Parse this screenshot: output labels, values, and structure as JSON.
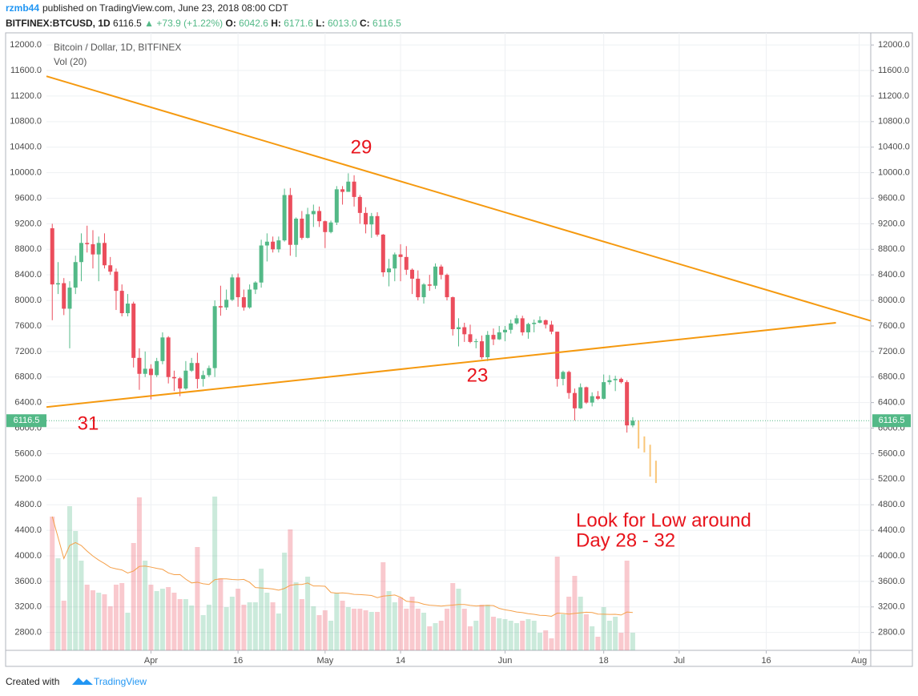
{
  "header": {
    "user": "rzmb44",
    "published": "published on TradingView.com, June 23, 2018 08:00 CDT",
    "quote": [
      "BITFINEX:BTCUSD, 1D",
      "6116.5",
      "▲",
      "+73.9 (+1.22%)",
      "O:",
      "6042.6",
      "H:",
      "6171.6",
      "L:",
      "6013.0",
      "C:",
      "6116.5"
    ]
  },
  "footer": {
    "created": "Created with",
    "brand": "TradingView"
  },
  "chart_data": {
    "type": "candlestick",
    "title": "Bitcoin / Dollar, 1D, BITFINEX",
    "volume_label": "Vol (20)",
    "x": [
      "2018-03-15",
      "2018-03-16",
      "2018-03-17",
      "2018-03-18",
      "2018-03-19",
      "2018-03-20",
      "2018-03-21",
      "2018-03-22",
      "2018-03-23",
      "2018-03-24",
      "2018-03-25",
      "2018-03-26",
      "2018-03-27",
      "2018-03-28",
      "2018-03-29",
      "2018-03-30",
      "2018-03-31",
      "2018-04-01",
      "2018-04-02",
      "2018-04-03",
      "2018-04-04",
      "2018-04-05",
      "2018-04-06",
      "2018-04-07",
      "2018-04-08",
      "2018-04-09",
      "2018-04-10",
      "2018-04-11",
      "2018-04-12",
      "2018-04-13",
      "2018-04-14",
      "2018-04-15",
      "2018-04-16",
      "2018-04-17",
      "2018-04-18",
      "2018-04-19",
      "2018-04-20",
      "2018-04-21",
      "2018-04-22",
      "2018-04-23",
      "2018-04-24",
      "2018-04-25",
      "2018-04-26",
      "2018-04-27",
      "2018-04-28",
      "2018-04-29",
      "2018-04-30",
      "2018-05-01",
      "2018-05-02",
      "2018-05-03",
      "2018-05-04",
      "2018-05-05",
      "2018-05-06",
      "2018-05-07",
      "2018-05-08",
      "2018-05-09",
      "2018-05-10",
      "2018-05-11",
      "2018-05-12",
      "2018-05-13",
      "2018-05-14",
      "2018-05-15",
      "2018-05-16",
      "2018-05-17",
      "2018-05-18",
      "2018-05-19",
      "2018-05-20",
      "2018-05-21",
      "2018-05-22",
      "2018-05-23",
      "2018-05-24",
      "2018-05-25",
      "2018-05-26",
      "2018-05-27",
      "2018-05-28",
      "2018-05-29",
      "2018-05-30",
      "2018-05-31",
      "2018-06-01",
      "2018-06-02",
      "2018-06-03",
      "2018-06-04",
      "2018-06-05",
      "2018-06-06",
      "2018-06-07",
      "2018-06-08",
      "2018-06-09",
      "2018-06-10",
      "2018-06-11",
      "2018-06-12",
      "2018-06-13",
      "2018-06-14",
      "2018-06-15",
      "2018-06-16",
      "2018-06-17",
      "2018-06-18",
      "2018-06-19",
      "2018-06-20",
      "2018-06-21",
      "2018-06-22",
      "2018-06-23"
    ],
    "open": [
      9130,
      8250,
      8270,
      7870,
      8200,
      8600,
      8900,
      8880,
      8720,
      8900,
      8550,
      8450,
      8150,
      7800,
      7950,
      7100,
      6850,
      6930,
      6830,
      7050,
      7420,
      6800,
      6780,
      6620,
      6900,
      7020,
      6770,
      6830,
      6940,
      7910,
      7890,
      8010,
      8360,
      8050,
      7890,
      8170,
      8280,
      8860,
      8920,
      8800,
      8940,
      9650,
      8870,
      9280,
      8980,
      9350,
      9400,
      9240,
      9070,
      9220,
      9740,
      9700,
      9860,
      9620,
      9370,
      9190,
      9320,
      9030,
      8440,
      8500,
      8720,
      8680,
      8480,
      8340,
      8050,
      8250,
      8230,
      8530,
      8400,
      8050,
      7550,
      7580,
      7470,
      7350,
      7360,
      7110,
      7460,
      7390,
      7500,
      7540,
      7640,
      7720,
      7500,
      7630,
      7650,
      7690,
      7620,
      7510,
      6770,
      6880,
      6550,
      6310,
      6640,
      6400,
      6500,
      6460,
      6720,
      6750,
      6770,
      6720,
      6042.6
    ],
    "high": [
      9200,
      8600,
      8350,
      8300,
      8700,
      9050,
      9170,
      9100,
      9000,
      9050,
      8680,
      8500,
      8250,
      8100,
      7980,
      7250,
      7200,
      7000,
      7100,
      7500,
      7440,
      6900,
      6800,
      7050,
      7100,
      7180,
      6900,
      6980,
      8000,
      8230,
      8170,
      8410,
      8420,
      8170,
      8250,
      8300,
      8950,
      9050,
      9000,
      9000,
      9750,
      9760,
      9300,
      9400,
      9450,
      9500,
      9470,
      9250,
      9250,
      9790,
      9790,
      9990,
      9960,
      9650,
      9460,
      9370,
      9380,
      9040,
      8650,
      8750,
      8880,
      8850,
      8500,
      8470,
      8270,
      8400,
      8580,
      8560,
      8420,
      8060,
      7720,
      7650,
      7620,
      7400,
      7450,
      7520,
      7560,
      7600,
      7600,
      7700,
      7770,
      7760,
      7650,
      7700,
      7750,
      7700,
      7680,
      7510,
      6900,
      6900,
      6620,
      6700,
      6650,
      6560,
      6580,
      6840,
      6830,
      6820,
      6790,
      6750,
      6171.6
    ],
    "low": [
      7690,
      8100,
      7770,
      7250,
      8100,
      8300,
      8750,
      8500,
      8300,
      8500,
      8400,
      7850,
      7750,
      7750,
      6950,
      6600,
      6800,
      6450,
      6800,
      7000,
      6700,
      6580,
      6500,
      6600,
      6880,
      6620,
      6650,
      6800,
      6800,
      7760,
      7850,
      7990,
      7900,
      7840,
      7870,
      8100,
      8200,
      8610,
      8750,
      8750,
      8920,
      8700,
      8680,
      8950,
      8970,
      9150,
      9150,
      8820,
      9050,
      9180,
      9500,
      9700,
      9470,
      9200,
      9050,
      8980,
      9000,
      8370,
      8220,
      8300,
      8300,
      8400,
      8100,
      8000,
      7950,
      8150,
      8180,
      8330,
      8000,
      7450,
      7280,
      7350,
      7330,
      7250,
      7080,
      7050,
      7300,
      7380,
      7360,
      7480,
      7620,
      7450,
      7400,
      7500,
      7640,
      7560,
      7470,
      6650,
      6670,
      6460,
      6120,
      6300,
      6380,
      6340,
      6440,
      6450,
      6680,
      6580,
      6700,
      5930,
      6013.0
    ],
    "close": [
      8250,
      8270,
      7870,
      8200,
      8600,
      8900,
      8880,
      8720,
      8900,
      8550,
      8450,
      8150,
      7800,
      7950,
      7100,
      6850,
      6930,
      6830,
      7050,
      7420,
      6800,
      6780,
      6620,
      6900,
      7020,
      6770,
      6830,
      6940,
      7910,
      7890,
      8010,
      8360,
      8050,
      7890,
      8170,
      8280,
      8860,
      8920,
      8800,
      8940,
      9650,
      8870,
      9280,
      8980,
      9350,
      9400,
      9240,
      9070,
      9220,
      9740,
      9700,
      9860,
      9620,
      9370,
      9190,
      9320,
      9030,
      8440,
      8500,
      8720,
      8680,
      8480,
      8340,
      8050,
      8250,
      8230,
      8530,
      8400,
      8050,
      7550,
      7580,
      7470,
      7350,
      7360,
      7110,
      7460,
      7390,
      7500,
      7540,
      7640,
      7720,
      7500,
      7630,
      7650,
      7690,
      7620,
      7510,
      6770,
      6880,
      6550,
      6310,
      6640,
      6400,
      6500,
      6460,
      6720,
      6750,
      6770,
      6720,
      6042.6,
      6116.5
    ],
    "volume": [
      50100,
      34500,
      18600,
      54000,
      44700,
      33600,
      24600,
      22500,
      21600,
      21000,
      16500,
      24600,
      25200,
      14100,
      40200,
      57300,
      33600,
      24600,
      22200,
      23100,
      23700,
      21600,
      19200,
      19200,
      16800,
      38700,
      13200,
      17100,
      57600,
      27000,
      16200,
      20100,
      23100,
      17100,
      18000,
      18000,
      30600,
      21600,
      18000,
      13800,
      36600,
      45300,
      25500,
      19200,
      27600,
      16500,
      13200,
      15000,
      11100,
      21600,
      18600,
      16200,
      15600,
      15600,
      15000,
      14400,
      14400,
      33000,
      22200,
      18000,
      19800,
      15600,
      20100,
      15600,
      14100,
      9000,
      10200,
      11100,
      15600,
      25200,
      23100,
      15600,
      9000,
      11100,
      17100,
      17100,
      12600,
      12000,
      11700,
      11100,
      10200,
      11100,
      11700,
      11100,
      6600,
      7500,
      4500,
      35100,
      13500,
      20100,
      27900,
      20100,
      13500,
      9000,
      5100,
      16200,
      11100,
      12600,
      6600,
      33600,
      6600
    ],
    "up_color": "#53b987",
    "down_color": "#eb4d5c",
    "last_price": 6116.5,
    "trend_lines": [
      {
        "x": [
          "2018-03-14",
          "2018-08-03"
        ],
        "y": [
          11510,
          7680
        ]
      },
      {
        "x": [
          "2018-03-14",
          "2018-07-28"
        ],
        "y": [
          6330,
          7650
        ]
      }
    ],
    "trend_color": "#f5990f",
    "forecast": {
      "x": [
        "2018-06-24",
        "2018-06-25",
        "2018-06-26",
        "2018-06-27"
      ],
      "high": [
        6120,
        5870,
        5740,
        5490
      ],
      "low": [
        5680,
        5620,
        5240,
        5140
      ],
      "color": "#f9c679"
    },
    "annotations": [
      "29",
      "23",
      "31",
      "Look for Low around",
      "Day 28 - 32"
    ],
    "xlim": [
      "2018-03-14",
      "2018-08-03"
    ],
    "xticks": [
      {
        "value": "2018-04-01",
        "label": "Apr"
      },
      {
        "value": "2018-04-16",
        "label": "16"
      },
      {
        "value": "2018-05-01",
        "label": "May"
      },
      {
        "value": "2018-05-14",
        "label": "14"
      },
      {
        "value": "2018-06-01",
        "label": "Jun"
      },
      {
        "value": "2018-06-18",
        "label": "18"
      },
      {
        "value": "2018-07-01",
        "label": "Jul"
      },
      {
        "value": "2018-07-16",
        "label": "16"
      },
      {
        "value": "2018-08-01",
        "label": "Aug"
      }
    ],
    "ylim": [
      2520,
      12190
    ],
    "yticks": [
      {
        "value": 12000,
        "label": "12000.0"
      },
      {
        "value": 11600,
        "label": "11600.0"
      },
      {
        "value": 11200,
        "label": "11200.0"
      },
      {
        "value": 10800,
        "label": "10800.0"
      },
      {
        "value": 10400,
        "label": "10400.0"
      },
      {
        "value": 10000,
        "label": "10000.0"
      },
      {
        "value": 9600,
        "label": "9600.0"
      },
      {
        "value": 9200,
        "label": "9200.0"
      },
      {
        "value": 8800,
        "label": "8800.0"
      },
      {
        "value": 8400,
        "label": "8400.0"
      },
      {
        "value": 8000,
        "label": "8000.0"
      },
      {
        "value": 7600,
        "label": "7600.0"
      },
      {
        "value": 7200,
        "label": "7200.0"
      },
      {
        "value": 6800,
        "label": "6800.0"
      },
      {
        "value": 6400,
        "label": "6400.0"
      },
      {
        "value": 6000,
        "label": "6000.0"
      },
      {
        "value": 5600,
        "label": "5600.0"
      },
      {
        "value": 5200,
        "label": "5200.0"
      },
      {
        "value": 4800,
        "label": "4800.0"
      },
      {
        "value": 4400,
        "label": "4400.0"
      },
      {
        "value": 4000,
        "label": "4000.0"
      },
      {
        "value": 3600,
        "label": "3600.0"
      },
      {
        "value": 3200,
        "label": "3200.0"
      },
      {
        "value": 2800,
        "label": "2800.0"
      }
    ],
    "grid": true
  }
}
